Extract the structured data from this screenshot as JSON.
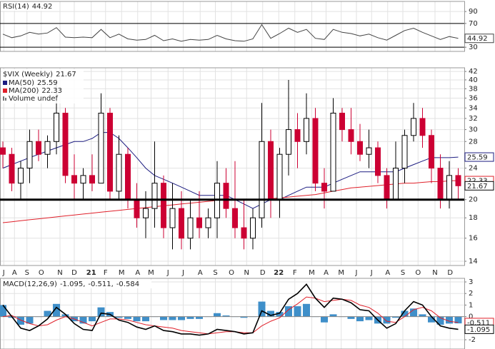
{
  "chart_data": [
    {
      "type": "line",
      "title": "RSI(14)",
      "color": "#444444",
      "values": [
        52,
        46,
        49,
        55,
        52,
        54,
        63,
        47,
        46,
        47,
        46,
        60,
        46,
        52,
        44,
        42,
        43,
        50,
        41,
        44,
        40,
        43,
        42,
        43,
        50,
        44,
        41,
        40,
        44,
        68,
        45,
        53,
        62,
        55,
        60,
        45,
        43,
        60,
        55,
        53,
        49,
        52,
        46,
        42,
        50,
        58,
        62,
        55,
        49,
        43,
        48,
        44.92
      ],
      "ylim": [
        23,
        107
      ],
      "yticks": [
        90,
        70,
        30
      ],
      "hlines": [
        70,
        30
      ]
    },
    {
      "type": "candlestick",
      "title": "$VIX (Weekly)",
      "log": true,
      "up_color": "#000000",
      "down_color": "#cc0033",
      "open": [
        27,
        26,
        22,
        24,
        28,
        26,
        28,
        33,
        23,
        22,
        23,
        22,
        33,
        21,
        26,
        20,
        18,
        19,
        22,
        17,
        19,
        16,
        18,
        17,
        18,
        22,
        19,
        17,
        16,
        18,
        28,
        20,
        26,
        30,
        28,
        32,
        22,
        21,
        33,
        30,
        28,
        26,
        27,
        23,
        20,
        24,
        29,
        32,
        29,
        24,
        20,
        23
      ],
      "high": [
        28,
        27,
        25,
        30,
        30,
        29,
        40,
        34,
        26,
        24,
        26,
        37,
        34,
        29,
        27,
        22,
        21,
        28,
        23,
        22,
        21,
        20,
        21,
        19,
        25,
        24,
        25,
        20,
        19,
        35,
        30,
        27,
        40,
        33,
        37,
        34,
        24,
        36,
        34,
        34,
        31,
        30,
        28,
        24,
        28,
        30,
        35,
        34,
        30,
        26,
        25,
        24
      ],
      "low": [
        24,
        21,
        20,
        22,
        25,
        24,
        26,
        22,
        20,
        20,
        21,
        22,
        20,
        20,
        19,
        17,
        16,
        17,
        16,
        15,
        15,
        15,
        16,
        16,
        16,
        18,
        16,
        15,
        15,
        17,
        18,
        18,
        23,
        24,
        26,
        21,
        19,
        21,
        28,
        26,
        25,
        24,
        22,
        19,
        20,
        22,
        28,
        27,
        22,
        19,
        19,
        20
      ],
      "close": [
        26,
        22,
        24,
        28,
        26,
        28,
        33,
        23,
        22,
        23,
        22,
        33,
        21,
        26,
        20,
        18,
        19,
        22,
        17,
        19,
        16,
        18,
        17,
        18,
        22,
        19,
        17,
        16,
        18,
        28,
        20,
        26,
        30,
        28,
        32,
        22,
        21,
        33,
        30,
        28,
        26,
        27,
        23,
        20,
        24,
        29,
        32,
        29,
        24,
        20,
        23,
        21.67
      ],
      "series": [
        {
          "name": "MA(50)",
          "color": "#1c1c80",
          "values": [
            24,
            24.5,
            25,
            25.5,
            26,
            26.5,
            27,
            27.5,
            28,
            28,
            28.5,
            29.5,
            29.5,
            28.5,
            27,
            25.5,
            24,
            23,
            22.5,
            22,
            21.5,
            21,
            20.5,
            20.5,
            20.5,
            20.5,
            20,
            19.5,
            19,
            19.5,
            20,
            20,
            20.5,
            21,
            21.5,
            21.5,
            21.5,
            22,
            22.5,
            23,
            23.5,
            23.5,
            23.5,
            23.5,
            23.5,
            24,
            24.5,
            25,
            25.5,
            25.5,
            25.5,
            25.59
          ]
        },
        {
          "name": "MA(200)",
          "color": "#e0202a",
          "values": [
            17.5,
            17.6,
            17.7,
            17.8,
            17.9,
            18,
            18.1,
            18.2,
            18.3,
            18.4,
            18.5,
            18.6,
            18.7,
            18.8,
            18.9,
            19,
            19.1,
            19.2,
            19.3,
            19.4,
            19.5,
            19.6,
            19.7,
            19.8,
            19.9,
            20,
            20,
            20,
            20,
            20,
            20.1,
            20.2,
            20.3,
            20.4,
            20.5,
            20.6,
            20.8,
            21,
            21.2,
            21.4,
            21.5,
            21.6,
            21.7,
            21.8,
            21.9,
            22,
            22,
            22.1,
            22.2,
            22.2,
            22.3,
            22.33
          ]
        }
      ],
      "volume_label": "Volume undef",
      "hline": 20,
      "ylim": [
        13.66,
        42.9
      ],
      "yticks": [
        14,
        16,
        18,
        20,
        24,
        28,
        30,
        32,
        34,
        36,
        38,
        40,
        42
      ],
      "xlim": [
        -0.32,
        51.68
      ],
      "xticks": [
        {
          "value": 0.1,
          "label": "J"
        },
        {
          "value": 1.3,
          "label": "A"
        },
        {
          "value": 2.7,
          "label": "S"
        },
        {
          "value": 4.3,
          "label": "O"
        },
        {
          "value": 6.4,
          "label": "N"
        },
        {
          "value": 8,
          "label": "D"
        },
        {
          "value": 9.9,
          "label": "21"
        },
        {
          "value": 11.5,
          "label": "F"
        },
        {
          "value": 13.3,
          "label": "M"
        },
        {
          "value": 15.1,
          "label": "A"
        },
        {
          "value": 16.6,
          "label": "M"
        },
        {
          "value": 18.5,
          "label": "J"
        },
        {
          "value": 20.2,
          "label": "J"
        },
        {
          "value": 22.1,
          "label": "A"
        },
        {
          "value": 23.8,
          "label": "S"
        },
        {
          "value": 25.6,
          "label": "O"
        },
        {
          "value": 27.3,
          "label": "N"
        },
        {
          "value": 29.1,
          "label": "D"
        },
        {
          "value": 30.9,
          "label": "22"
        },
        {
          "value": 32.7,
          "label": "F"
        },
        {
          "value": 34.6,
          "label": "M"
        },
        {
          "value": 36.2,
          "label": "A"
        },
        {
          "value": 37.9,
          "label": "M"
        },
        {
          "value": 39.6,
          "label": "J"
        },
        {
          "value": 41.3,
          "label": "J"
        },
        {
          "value": 43.1,
          "label": "A"
        },
        {
          "value": 44.8,
          "label": "S"
        },
        {
          "value": 46.5,
          "label": "O"
        },
        {
          "value": 48.4,
          "label": "N"
        },
        {
          "value": 50.1,
          "label": "D"
        }
      ]
    },
    {
      "type": "macd",
      "title": "MACD(12,26,9)",
      "title_separator": ",",
      "series": [
        {
          "color": "#000000",
          "values": [
            1.0,
            0,
            -1.0,
            -1.2,
            -0.8,
            -0.2,
            0.8,
            0.2,
            -0.6,
            -1.1,
            -1.2,
            0.3,
            0.2,
            -0.3,
            -0.5,
            -0.9,
            -1.1,
            -0.8,
            -1.2,
            -1.3,
            -1.5,
            -1.5,
            -1.6,
            -1.5,
            -1.1,
            -1.2,
            -1.3,
            -1.5,
            -1.4,
            0.5,
            0.1,
            0.3,
            1.5,
            2.0,
            2.8,
            1.6,
            0.8,
            1.6,
            1.5,
            1.2,
            0.6,
            0.5,
            -0.3,
            -1.0,
            -0.6,
            0.5,
            1.3,
            1.0,
            0.0,
            -0.8,
            -1.0,
            -1.095
          ]
        },
        {
          "color": "#e0202a",
          "values": [
            0,
            0.1,
            -0.3,
            -0.6,
            -0.8,
            -0.7,
            -0.3,
            0,
            -0.2,
            -0.5,
            -0.8,
            -0.5,
            -0.2,
            -0.2,
            -0.3,
            -0.5,
            -0.7,
            -0.8,
            -0.9,
            -1.0,
            -1.2,
            -1.3,
            -1.4,
            -1.5,
            -1.4,
            -1.3,
            -1.3,
            -1.4,
            -1.4,
            -0.8,
            -0.4,
            -0.1,
            0.6,
            1.1,
            1.7,
            1.6,
            1.3,
            1.4,
            1.5,
            1.4,
            1.0,
            0.8,
            0.3,
            -0.4,
            -0.5,
            0,
            0.6,
            0.8,
            0.5,
            -0.1,
            -0.4,
            -0.511
          ]
        },
        {
          "color": "#3f8fc9",
          "values": [
            1.0,
            -0.1,
            -0.7,
            -0.6,
            0,
            0.5,
            1.1,
            0.2,
            -0.4,
            -0.6,
            -0.4,
            0.8,
            0.4,
            -0.1,
            -0.2,
            -0.4,
            -0.4,
            0,
            -0.3,
            -0.3,
            -0.3,
            -0.2,
            -0.2,
            0,
            0.3,
            0.1,
            0,
            -0.1,
            0,
            1.3,
            0.5,
            0.4,
            0.9,
            0.9,
            1.1,
            0,
            -0.5,
            0.2,
            0,
            -0.2,
            -0.4,
            -0.3,
            -0.6,
            -0.6,
            -0.1,
            0.5,
            0.7,
            0.2,
            -0.5,
            -0.7,
            -0.6,
            -0.584
          ]
        }
      ],
      "ylim": [
        -2.8,
        3.31
      ],
      "yticks": [
        3,
        2,
        1,
        0,
        -2
      ]
    }
  ]
}
